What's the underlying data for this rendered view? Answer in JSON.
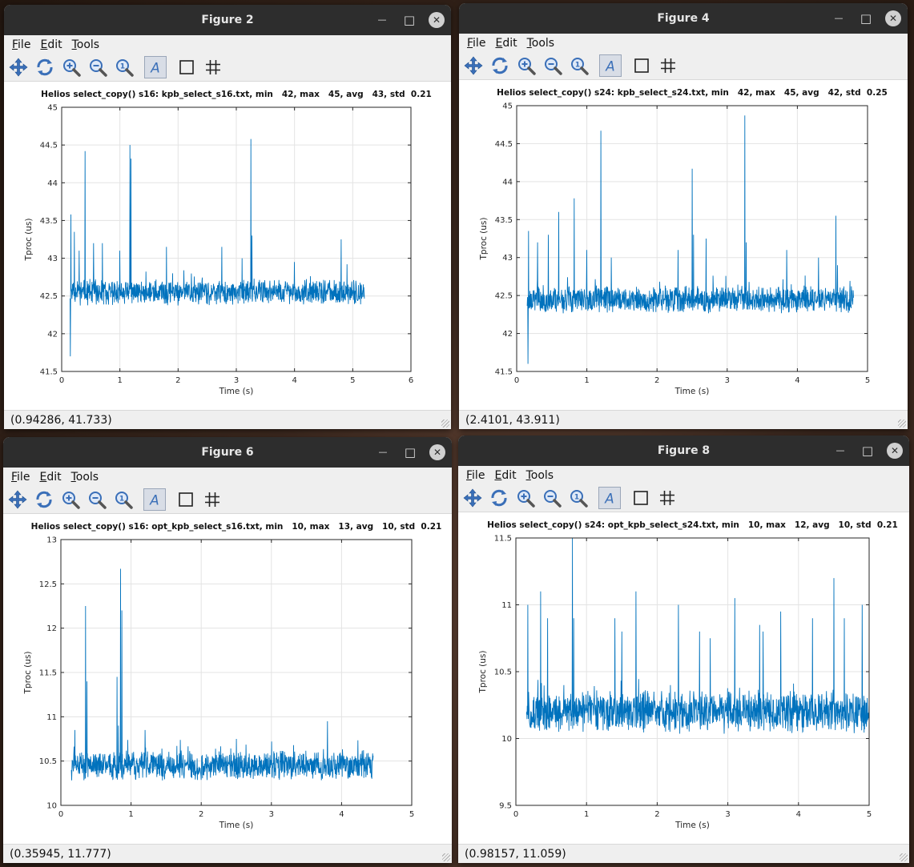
{
  "menus": [
    {
      "pre": "",
      "ul": "F",
      "post": "ile"
    },
    {
      "pre": "",
      "ul": "E",
      "post": "dit"
    },
    {
      "pre": "",
      "ul": "T",
      "post": "ools"
    }
  ],
  "toolbar_icons": [
    "pan-icon",
    "rotate-icon",
    "zoom-in-icon",
    "zoom-out-icon",
    "zoom-reset-icon",
    "text-icon",
    "box-icon",
    "grid-icon"
  ],
  "windows": [
    {
      "title": "Figure 2",
      "status": "(0.94286, 41.733)",
      "chart_data": {
        "type": "line",
        "title": "Helios select_copy() s16: kpb_select_s16.txt, min   42, max   45, avg   43, std  0.21",
        "xlabel": "Time (s)",
        "ylabel": "Tproc (us)",
        "xlim": [
          0,
          6
        ],
        "ylim": [
          41.5,
          45
        ],
        "xticks": [
          "0",
          "1",
          "2",
          "3",
          "4",
          "5",
          "6"
        ],
        "yticks": [
          "41.5",
          "42",
          "42.5",
          "43",
          "43.5",
          "44",
          "44.5",
          "45"
        ],
        "grid": true,
        "line_color": "#0072BD",
        "x_range": [
          0.14,
          5.2
        ],
        "baseline": 42.55,
        "noise": 0.13,
        "spikes": [
          [
            0.15,
            41.7
          ],
          [
            0.16,
            43.58
          ],
          [
            0.22,
            43.35
          ],
          [
            0.4,
            44.42
          ],
          [
            0.3,
            43.1
          ],
          [
            0.55,
            43.2
          ],
          [
            0.7,
            43.2
          ],
          [
            1.17,
            44.5
          ],
          [
            1.19,
            44.32
          ],
          [
            1.0,
            43.1
          ],
          [
            1.8,
            43.15
          ],
          [
            2.75,
            43.15
          ],
          [
            3.25,
            44.58
          ],
          [
            3.27,
            43.3
          ],
          [
            3.1,
            43.0
          ],
          [
            4.8,
            43.25
          ],
          [
            4.0,
            42.95
          ],
          [
            4.9,
            42.92
          ]
        ],
        "seed": 11
      }
    },
    {
      "title": "Figure 4",
      "status": "(2.4101, 43.911)",
      "chart_data": {
        "type": "line",
        "title": "Helios select_copy() s24: kpb_select_s24.txt, min   42, max   45, avg   42, std  0.25",
        "xlabel": "Time (s)",
        "ylabel": "Tproc (us)",
        "xlim": [
          0,
          5
        ],
        "ylim": [
          41.5,
          45
        ],
        "xticks": [
          "0",
          "1",
          "2",
          "3",
          "4",
          "5"
        ],
        "yticks": [
          "41.5",
          "42",
          "42.5",
          "43",
          "43.5",
          "44",
          "44.5",
          "45"
        ],
        "grid": true,
        "line_color": "#0072BD",
        "x_range": [
          0.15,
          4.8
        ],
        "baseline": 42.45,
        "noise": 0.14,
        "spikes": [
          [
            0.16,
            41.6
          ],
          [
            0.17,
            43.35
          ],
          [
            0.3,
            43.2
          ],
          [
            0.45,
            43.3
          ],
          [
            0.6,
            43.6
          ],
          [
            0.82,
            43.78
          ],
          [
            1.0,
            43.1
          ],
          [
            1.2,
            44.67
          ],
          [
            1.35,
            43.0
          ],
          [
            2.3,
            43.1
          ],
          [
            2.5,
            44.17
          ],
          [
            2.52,
            43.3
          ],
          [
            2.7,
            43.25
          ],
          [
            3.25,
            44.87
          ],
          [
            3.27,
            43.2
          ],
          [
            3.85,
            43.1
          ],
          [
            4.3,
            43.0
          ],
          [
            4.55,
            43.55
          ],
          [
            4.57,
            42.9
          ]
        ],
        "seed": 23
      }
    },
    {
      "title": "Figure 6",
      "status": "(0.35945, 11.777)",
      "chart_data": {
        "type": "line",
        "title": "Helios select_copy() s16: opt_kpb_select_s16.txt, min   10, max   13, avg   10, std  0.21",
        "xlabel": "Time (s)",
        "ylabel": "Tproc (us)",
        "xlim": [
          0,
          5
        ],
        "ylim": [
          10,
          13
        ],
        "xticks": [
          "0",
          "1",
          "2",
          "3",
          "4",
          "5"
        ],
        "yticks": [
          "10",
          "10.5",
          "11",
          "11.5",
          "12",
          "12.5",
          "13"
        ],
        "grid": true,
        "line_color": "#0072BD",
        "x_range": [
          0.15,
          4.45
        ],
        "baseline": 10.45,
        "noise": 0.13,
        "spikes": [
          [
            0.2,
            10.85
          ],
          [
            0.35,
            12.25
          ],
          [
            0.37,
            11.4
          ],
          [
            0.8,
            11.45
          ],
          [
            0.82,
            10.9
          ],
          [
            0.85,
            12.67
          ],
          [
            0.87,
            12.2
          ],
          [
            1.2,
            10.85
          ],
          [
            3.8,
            10.95
          ],
          [
            2.5,
            10.75
          ]
        ],
        "seed": 37
      }
    },
    {
      "title": "Figure 8",
      "status": "(0.98157, 11.059)",
      "chart_data": {
        "type": "line",
        "title": "Helios select_copy() s24: opt_kpb_select_s24.txt, min   10, max   12, avg   10, std  0.21",
        "xlabel": "Time (s)",
        "ylabel": "Tproc (us)",
        "xlim": [
          0,
          5
        ],
        "ylim": [
          9.5,
          11.5
        ],
        "xticks": [
          "0",
          "1",
          "2",
          "3",
          "4",
          "5"
        ],
        "yticks": [
          "9.5",
          "10",
          "10.5",
          "11",
          "11.5"
        ],
        "grid": true,
        "line_color": "#0072BD",
        "x_range": [
          0.15,
          5.0
        ],
        "baseline": 10.2,
        "noise": 0.12,
        "spikes": [
          [
            0.17,
            11.0
          ],
          [
            0.35,
            11.1
          ],
          [
            0.45,
            10.9
          ],
          [
            0.8,
            11.5
          ],
          [
            0.82,
            10.9
          ],
          [
            1.4,
            10.9
          ],
          [
            1.5,
            10.8
          ],
          [
            1.7,
            11.1
          ],
          [
            2.3,
            11.0
          ],
          [
            2.6,
            10.8
          ],
          [
            2.75,
            10.75
          ],
          [
            3.1,
            11.05
          ],
          [
            3.45,
            10.85
          ],
          [
            3.5,
            10.8
          ],
          [
            3.75,
            10.95
          ],
          [
            4.2,
            10.9
          ],
          [
            4.5,
            11.2
          ],
          [
            4.65,
            10.9
          ],
          [
            4.9,
            11.0
          ]
        ],
        "seed": 51
      }
    }
  ]
}
